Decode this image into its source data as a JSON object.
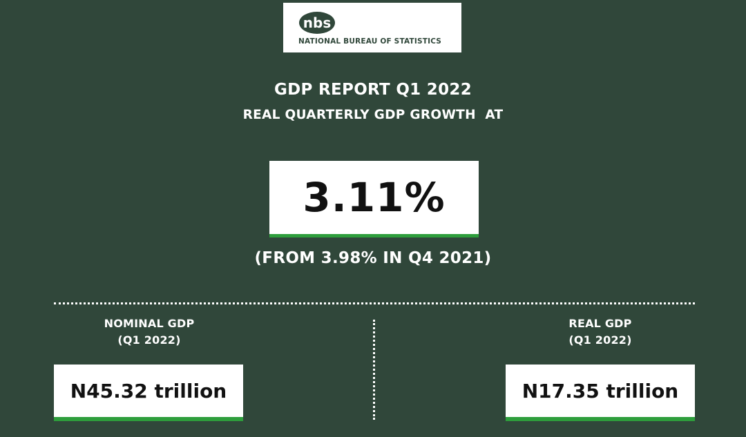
{
  "colors": {
    "background": "#30473a",
    "accent_green": "#2e9e3c",
    "box_background": "#ffffff",
    "value_text": "#111111"
  },
  "logo": {
    "mark_text": "nbs",
    "org_name": "NATIONAL BUREAU OF STATISTICS",
    "icon": "nbs-logo-icon"
  },
  "report": {
    "title": "GDP REPORT Q1 2022",
    "subtitle": "REAL QUARTERLY GDP GROWTH  AT",
    "headline_value": "3.11%",
    "comparison_note": "(FROM 3.98% IN Q4 2021)"
  },
  "stats": [
    {
      "label_line1": "NOMINAL GDP",
      "label_line2": "(Q1 2022)",
      "value": "N45.32 trillion"
    },
    {
      "label_line1": "REAL GDP",
      "label_line2": "(Q1 2022)",
      "value": "N17.35 trillion"
    }
  ]
}
